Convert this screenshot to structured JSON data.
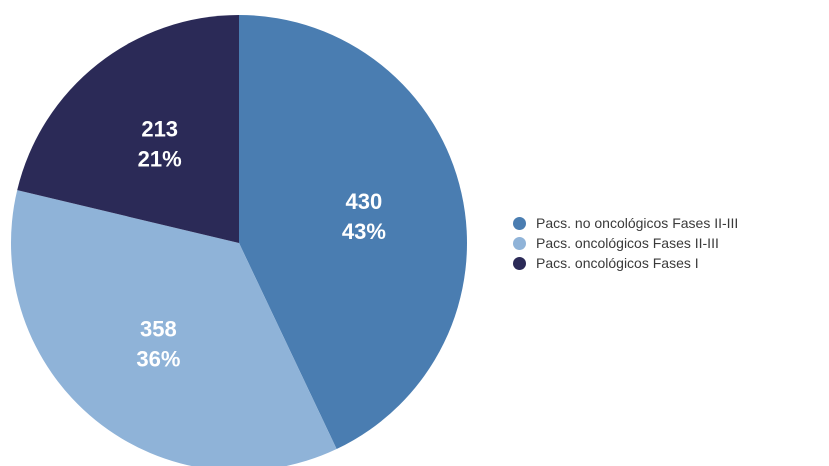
{
  "chart_data": {
    "type": "pie",
    "slices": [
      {
        "label": "Pacs. no oncológicos Fases II-III",
        "value": 430,
        "percent_label": "43%",
        "color": "#4a7db1"
      },
      {
        "label": "Pacs. oncológicos Fases II-III",
        "value": 358,
        "percent_label": "36%",
        "color": "#8fb3d8"
      },
      {
        "label": "Pacs. oncológicos Fases I",
        "value": 213,
        "percent_label": "21%",
        "color": "#2b2a57"
      }
    ],
    "start_angle_deg": 0,
    "direction": "clockwise",
    "legend_position": "right"
  }
}
